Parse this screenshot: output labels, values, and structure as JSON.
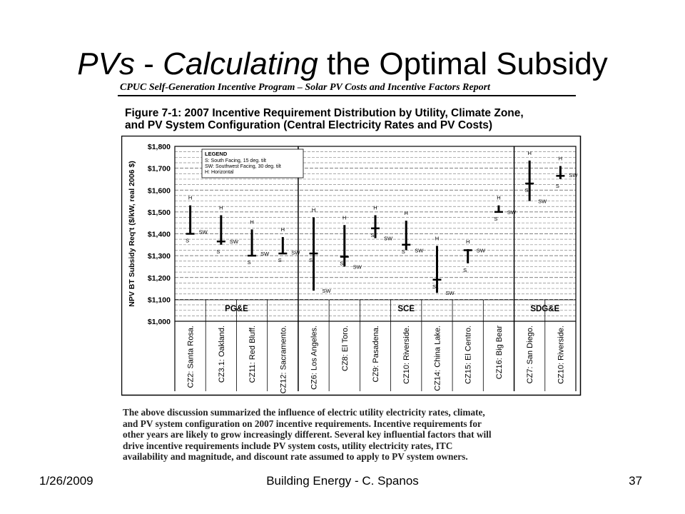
{
  "slide": {
    "title_italic": "PVs",
    "title_sep": " - ",
    "title_italic2": "Calculating",
    "title_rest": " the Optimal Subsidy",
    "report_header": "CPUC Self-Generation Incentive Program – Solar PV Costs and Incentive Factors Report",
    "figure_caption_line1": "Figure 7-1:  2007 Incentive Requirement Distribution by Utility, Climate Zone,",
    "figure_caption_line2": "and PV System Configuration (Central Electricity Rates and PV Costs)",
    "paragraph_lines": [
      "The above discussion summarized the influence of electric utility electricity rates, climate,",
      "and PV system configuration on 2007 incentive requirements.  Incentive requirements for",
      "other years are likely to grow increasingly different.  Several key influential factors that will",
      "drive incentive requirements include PV system costs, utility electricity rates,  ITC",
      "availability and magnitude, and discount rate assumed to apply to PV system owners."
    ],
    "footer_date": "1/26/2009",
    "footer_center": "Building Energy - C. Spanos",
    "footer_page": "37"
  },
  "chart_data": {
    "type": "range",
    "ylabel": "NPV BT Subsidy Req't ($/kW, real 2006 $)",
    "ylim": [
      1000,
      1800
    ],
    "ytick_step": 100,
    "ytick_labels": [
      "$1,000",
      "$1,100",
      "$1,200",
      "$1,300",
      "$1,400",
      "$1,500",
      "$1,600",
      "$1,700",
      "$1,800"
    ],
    "grid": "dashed horizontal",
    "legend": {
      "title": "LEGEND",
      "entries": [
        "S:   South Facing, 15 deg. tilt",
        "SW: Southwest Facing, 30 deg. tilt",
        "H:   Horizontal"
      ],
      "placement": "top-left"
    },
    "groups": [
      {
        "label": "PG&E",
        "from": 0,
        "to": 3
      },
      {
        "label": "SCE",
        "from": 4,
        "to": 10
      },
      {
        "label": "SDG&E",
        "from": 11,
        "to": 12
      }
    ],
    "categories": [
      "CZ2: Santa Rosa.",
      "CZ3.1: Oakland.",
      "CZ11: Red Bluff.",
      "CZ12: Sacramento.",
      "CZ6: Los Angeles.",
      "CZ8: El Toro.",
      "CZ9: Pasadena.",
      "CZ10: Riverside.",
      "CZ14: China Lake.",
      "CZ15: El Centro.",
      "CZ16: Big Bear",
      "CZ7: San Diego.",
      "CZ10: Riverside."
    ],
    "series": [
      {
        "name": "H",
        "values": [
          1530,
          1485,
          1420,
          1385,
          1475,
          1440,
          1485,
          1460,
          1345,
          1330,
          1530,
          1735,
          1710
        ]
      },
      {
        "name": "SW",
        "values": [
          1410,
          1365,
          1310,
          1315,
          1140,
          1250,
          1380,
          1325,
          1130,
          1325,
          1500,
          1550,
          1670
        ]
      },
      {
        "name": "S",
        "values": [
          1400,
          1350,
          1300,
          1310,
          1310,
          1295,
          1425,
          1350,
          1190,
          1265,
          1500,
          1630,
          1650
        ]
      }
    ],
    "marker_values": [
      1400,
      1365,
      1300,
      1310,
      1310,
      1295,
      1425,
      1350,
      1190,
      1325,
      1500,
      1630,
      1665
    ]
  }
}
